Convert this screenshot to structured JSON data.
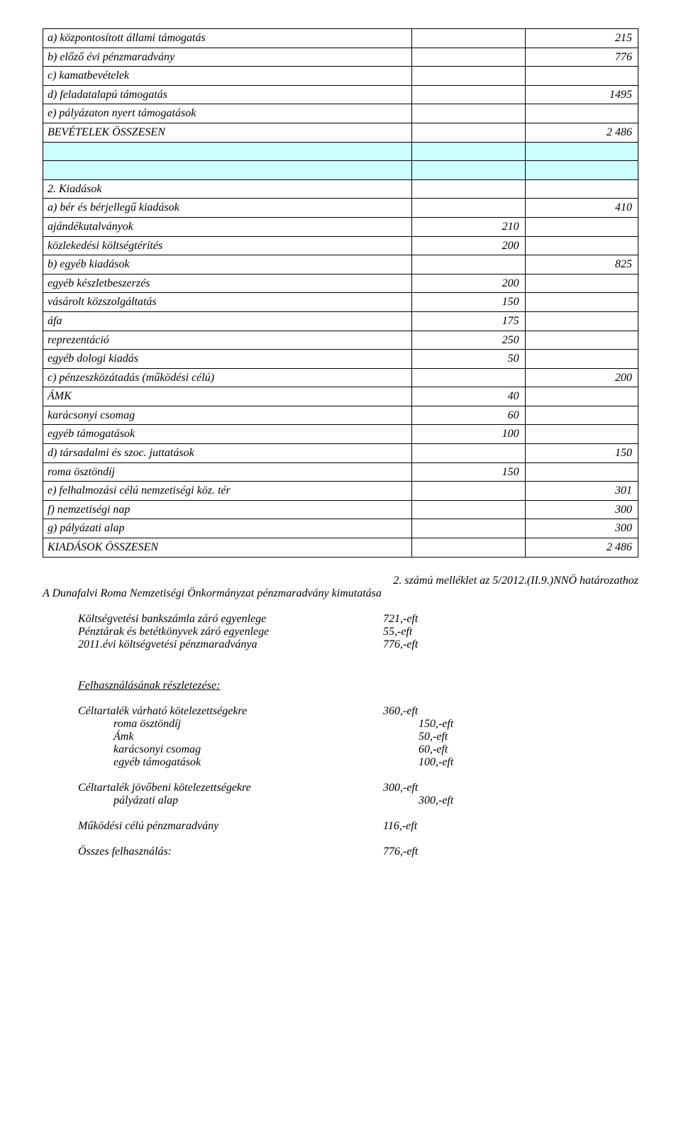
{
  "table1": {
    "rows": [
      {
        "label": "a) központosított állami támogatás",
        "v1": "",
        "v2": "215",
        "indent": 1
      },
      {
        "label": "b) előző évi pénzmaradvány",
        "v1": "",
        "v2": "776",
        "indent": 1
      },
      {
        "label": "c) kamatbevételek",
        "v1": "",
        "v2": "",
        "indent": 1
      },
      {
        "label": "d) feladatalapú támogatás",
        "v1": "",
        "v2": "1495",
        "indent": 1
      },
      {
        "label": "e) pályázaton nyert támogatások",
        "v1": "",
        "v2": "",
        "indent": 1
      },
      {
        "label": "BEVÉTELEK ÖSSZESEN",
        "v1": "",
        "v2": "2 486",
        "indent": 0
      },
      {
        "cyan": true
      },
      {
        "cyan": true
      },
      {
        "label": "2. Kiadások",
        "v1": "",
        "v2": "",
        "indent": 0
      },
      {
        "label": "a) bér és bérjellegű kiadások",
        "v1": "",
        "v2": "410",
        "indent": 1
      },
      {
        "label": "ajándékutalványok",
        "v1": "210",
        "v2": "",
        "indent": 2
      },
      {
        "label": "közlekedési költségtérítés",
        "v1": "200",
        "v2": "",
        "indent": 2
      },
      {
        "label": "b) egyéb kiadások",
        "v1": "",
        "v2": "825",
        "indent": 1
      },
      {
        "label": "egyéb készletbeszerzés",
        "v1": "200",
        "v2": "",
        "indent": 2
      },
      {
        "label": "vásárolt közszolgáltatás",
        "v1": "150",
        "v2": "",
        "indent": 2
      },
      {
        "label": "áfa",
        "v1": "175",
        "v2": "",
        "indent": 2
      },
      {
        "label": "reprezentáció",
        "v1": "250",
        "v2": "",
        "indent": 2
      },
      {
        "label": "egyéb dologi kiadás",
        "v1": "50",
        "v2": "",
        "indent": 2
      },
      {
        "label": "c) pénzeszközátadás (működési célú)",
        "v1": "",
        "v2": "200",
        "indent": 1
      },
      {
        "label": "ÁMK",
        "v1": "40",
        "v2": "",
        "indent": 2
      },
      {
        "label": "karácsonyi csomag",
        "v1": "60",
        "v2": "",
        "indent": 2
      },
      {
        "label": "egyéb támogatások",
        "v1": "100",
        "v2": "",
        "indent": 2
      },
      {
        "label": "d) társadalmi és szoc. juttatások",
        "v1": "",
        "v2": "150",
        "indent": 1
      },
      {
        "label": "roma ösztöndíj",
        "v1": "150",
        "v2": "",
        "indent": 2
      },
      {
        "label": "e) felhalmozási célú nemzetiségi  köz. tér",
        "v1": "",
        "v2": "301",
        "indent": 1
      },
      {
        "label": "f) nemzetiségi nap",
        "v1": "",
        "v2": "300",
        "indent": 1
      },
      {
        "label": "g) pályázati alap",
        "v1": "",
        "v2": "300",
        "indent": 1
      },
      {
        "label": "KIADÁSOK ÖSSZESEN",
        "v1": "",
        "v2": "2 486",
        "indent": 0
      }
    ]
  },
  "ref_line": "2. számú melléklet az 5/2012.(II.9.)NNÖ határozathoz",
  "subtitle": "A Dunafalvi Roma Nemzetiségi Önkormányzat pénzmaradvány kimutatása",
  "balances": [
    {
      "label": "Költségvetési bankszámla záró egyenlege",
      "amt": "721,-eft",
      "indent": 1
    },
    {
      "label": "Pénztárak és betétkönyvek záró egyenlege",
      "amt": "55,-eft",
      "indent": 1
    },
    {
      "label": "2011.évi költségvetési pénzmaradványa",
      "amt": "776,-eft",
      "indent": 1
    }
  ],
  "detail_heading": "Felhasználásának részletezése:",
  "detail_block1": [
    {
      "label": "Céltartalék várható kötelezettségekre",
      "amt": "360,-eft",
      "indent": 1
    },
    {
      "label": "roma ösztöndíj",
      "amt": "150,-eft",
      "indent": 2
    },
    {
      "label": "Ámk",
      "amt": "50,-eft",
      "indent": 2
    },
    {
      "label": "karácsonyi csomag",
      "amt": "60,-eft",
      "indent": 2
    },
    {
      "label": "egyéb támogatások",
      "amt": "100,-eft",
      "indent": 2
    }
  ],
  "detail_block2": [
    {
      "label": "Céltartalék jövőbeni kötelezettségekre",
      "amt": "300,-eft",
      "indent": 1
    },
    {
      "label": "pályázati alap",
      "amt": "300,-eft",
      "indent": 2
    }
  ],
  "detail_block3": [
    {
      "label": "Működési célú pénzmaradvány",
      "amt": "116,-eft",
      "indent": 1
    }
  ],
  "detail_block4": [
    {
      "label": "Összes felhasználás:",
      "amt": "776,-eft",
      "indent": 1
    }
  ]
}
